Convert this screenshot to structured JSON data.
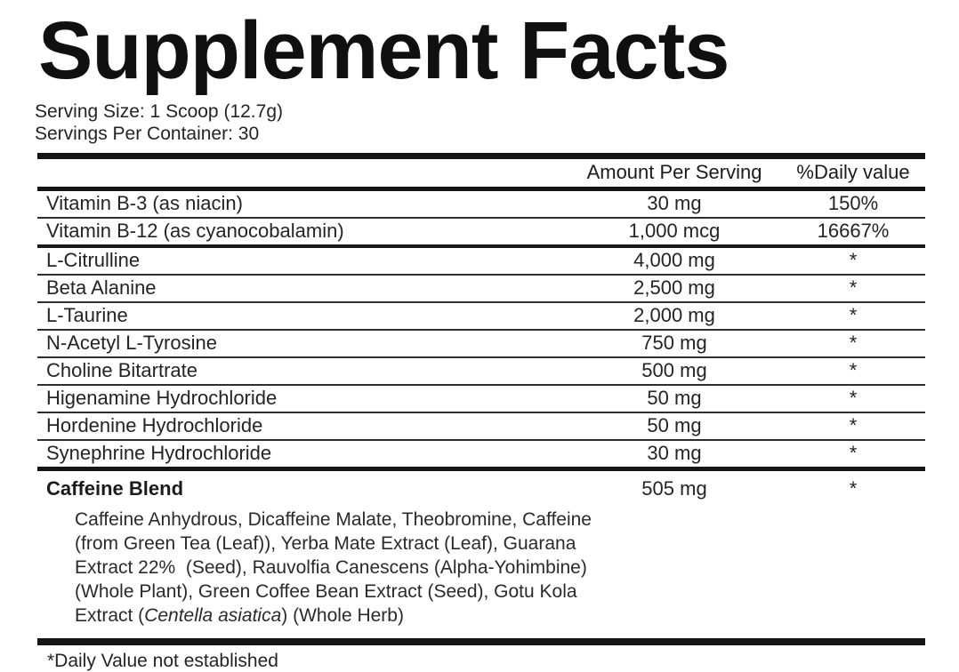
{
  "colors": {
    "background": "#ffffff",
    "text": "#1e1e1e",
    "rule": "#151515"
  },
  "label": {
    "title": "Supplement Facts",
    "serving_size": "Serving Size: 1 Scoop (12.7g)",
    "servings_per_container": "Servings Per Container: 30",
    "columns": {
      "amount": "Amount Per Serving",
      "daily_value": "%Daily value"
    },
    "rows": [
      {
        "name": "Vitamin B-3 (as niacin)",
        "amount": "30 mg",
        "daily_value": "150%"
      },
      {
        "name": "Vitamin B-12 (as cyanocobalamin)",
        "amount": "1,000 mcg",
        "daily_value": "16667%"
      },
      {
        "name": "L-Citrulline",
        "amount": "4,000 mg",
        "daily_value": "*"
      },
      {
        "name": "Beta Alanine",
        "amount": "2,500 mg",
        "daily_value": "*"
      },
      {
        "name": "L-Taurine",
        "amount": "2,000 mg",
        "daily_value": "*"
      },
      {
        "name": "N-Acetyl L-Tyrosine",
        "amount": "750 mg",
        "daily_value": "*"
      },
      {
        "name": "Choline Bitartrate",
        "amount": "500 mg",
        "daily_value": "*"
      },
      {
        "name": "Higenamine Hydrochloride",
        "amount": "50 mg",
        "daily_value": "*"
      },
      {
        "name": "Hordenine Hydrochloride",
        "amount": "50 mg",
        "daily_value": "*"
      },
      {
        "name": "Synephrine Hydrochloride",
        "amount": "30 mg",
        "daily_value": "*"
      }
    ],
    "blend": {
      "name": "Caffeine Blend",
      "amount": "505 mg",
      "daily_value": "*",
      "description_lines": [
        [
          {
            "text": "Caffeine Anhydrous, Dicaffeine Malate, Theobromine, Caffeine"
          }
        ],
        [
          {
            "text": "(from Green Tea (Leaf)), Yerba Mate Extract (Leaf), Guarana"
          }
        ],
        [
          {
            "text": "Extract 22%  (Seed), Rauvolfia Canescens (Alpha-Yohimbine)"
          }
        ],
        [
          {
            "text": "(Whole Plant), Green Coffee Bean Extract (Seed), Gotu Kola"
          }
        ],
        [
          {
            "text": "Extract ("
          },
          {
            "text": "Centella asiatica",
            "italic": true
          },
          {
            "text": ") (Whole Herb)"
          }
        ]
      ]
    },
    "footnote": "*Daily Value not established"
  }
}
